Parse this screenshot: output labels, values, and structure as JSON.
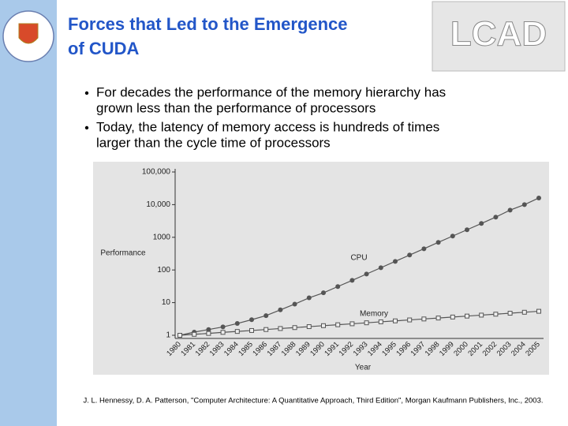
{
  "slide": {
    "title_lines": [
      "Forces that Led to the Emergence",
      "of CUDA"
    ],
    "bullets": [
      [
        "For decades the performance of the memory hierarchy has",
        "grown less than the performance of processors"
      ],
      [
        "Today, the latency of memory access is hundreds of times",
        "larger than the cycle time of processors"
      ]
    ],
    "citation": "J. L. Hennessy, D. A. Patterson, \"Computer Architecture: A Quantitative Approach, Third Edition\", Morgan Kaufmann Publishers, Inc., 2003."
  },
  "chart_data": {
    "type": "line",
    "ylabel": "Performance",
    "xlabel": "Year",
    "log_y": true,
    "categories": [
      "1980",
      "1981",
      "1982",
      "1983",
      "1984",
      "1985",
      "1986",
      "1987",
      "1988",
      "1989",
      "1990",
      "1991",
      "1992",
      "1993",
      "1994",
      "1995",
      "1996",
      "1997",
      "1998",
      "1999",
      "2000",
      "2001",
      "2002",
      "2003",
      "2004",
      "2005"
    ],
    "series": [
      {
        "name": "CPU",
        "color": "#555555",
        "marker": "circle",
        "values": [
          1,
          1.25,
          1.5,
          1.8,
          2.3,
          3,
          4,
          6,
          9,
          14,
          20,
          31,
          48,
          75,
          117,
          183,
          286,
          446,
          700,
          1090,
          1700,
          2650,
          4150,
          6800,
          10000,
          16000
        ]
      },
      {
        "name": "Memory",
        "color": "#555555",
        "marker": "square",
        "values": [
          1,
          1.07,
          1.14,
          1.23,
          1.31,
          1.4,
          1.5,
          1.61,
          1.72,
          1.84,
          1.97,
          2.1,
          2.25,
          2.41,
          2.58,
          2.76,
          2.95,
          3.16,
          3.38,
          3.62,
          3.87,
          4.14,
          4.43,
          4.74,
          5.07,
          5.43
        ]
      }
    ],
    "ylim": [
      1,
      100000
    ],
    "yticks": [
      1,
      10,
      100,
      1000,
      {
        "value": 10000,
        "label": "10,000"
      },
      {
        "value": 100000,
        "label": "100,000"
      }
    ],
    "grid": false
  }
}
